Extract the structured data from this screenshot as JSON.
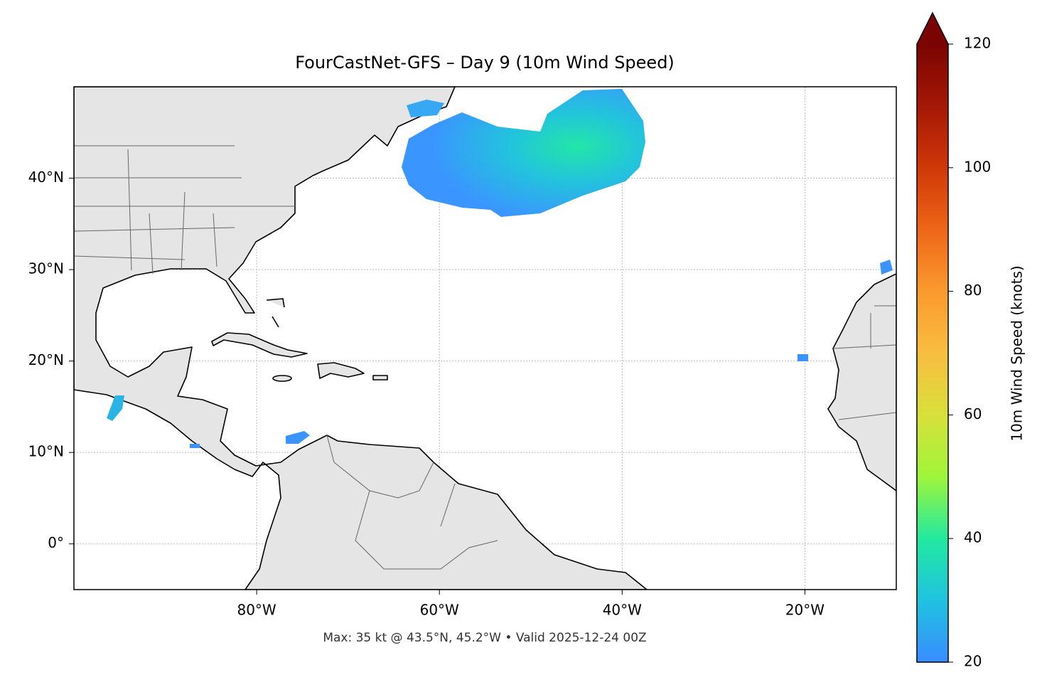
{
  "map": {
    "title": "FourCastNet-GFS – Day 9 (10m Wind Speed)",
    "xlim": [
      -100,
      -10
    ],
    "ylim": [
      -5,
      50
    ],
    "xticks": [
      {
        "value": -80,
        "label": "80°W"
      },
      {
        "value": -60,
        "label": "60°W"
      },
      {
        "value": -40,
        "label": "40°W"
      },
      {
        "value": -20,
        "label": "20°W"
      }
    ],
    "yticks": [
      {
        "value": 0,
        "label": "0°"
      },
      {
        "value": 10,
        "label": "10°N"
      },
      {
        "value": 20,
        "label": "20°N"
      },
      {
        "value": 30,
        "label": "30°N"
      },
      {
        "value": 40,
        "label": "40°N"
      }
    ],
    "grid": true,
    "footer": "Max: 35 kt @ 43.5°N, 45.2°W • Valid 2025-12-24 00Z"
  },
  "colorbar": {
    "label": "10m Wind Speed (knots)",
    "lim": [
      20,
      120
    ],
    "ticks": [
      20,
      40,
      60,
      80,
      100,
      120
    ],
    "extend": "max",
    "colors": [
      "#3a8cff",
      "#1fc3df",
      "#22e9a0",
      "#9ff53a",
      "#d8e03a",
      "#f8bd40",
      "#fa9a2e",
      "#ee6618",
      "#cf3808",
      "#a51806",
      "#7a0403"
    ]
  }
}
